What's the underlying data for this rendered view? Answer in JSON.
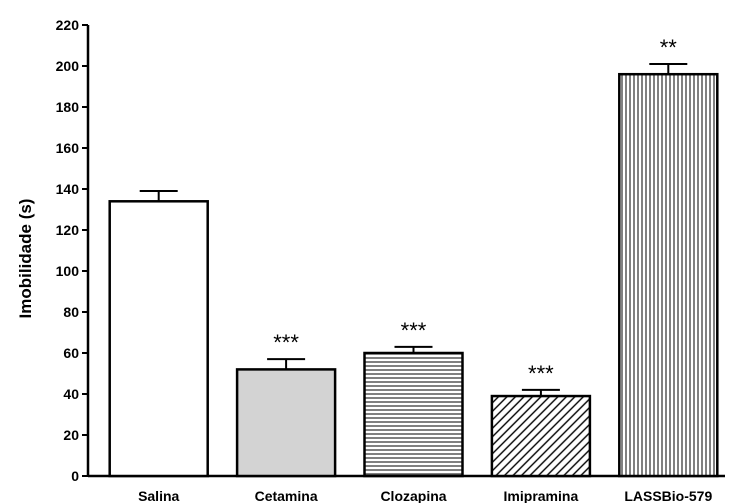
{
  "chart_data": {
    "type": "bar",
    "title": "",
    "xlabel": "",
    "ylabel": "Imobilidade (s)",
    "ylim": [
      0,
      220
    ],
    "yticks": [
      0,
      20,
      40,
      60,
      80,
      100,
      120,
      140,
      160,
      180,
      200,
      220
    ],
    "categories": [
      "Salina",
      "Cetamina",
      "Clozapina",
      "Imipramina",
      "LASSBio-579"
    ],
    "values": [
      134,
      52,
      60,
      39,
      196
    ],
    "errors": [
      5,
      5,
      3,
      3,
      5
    ],
    "significance": [
      "",
      "***",
      "***",
      "***",
      "**"
    ],
    "fills": [
      "white",
      "light-gray",
      "horizontal-lines",
      "diagonal-lines",
      "vertical-lines"
    ],
    "colors": {
      "bar_stroke": "#000000",
      "gray_fill": "#d3d3d3"
    },
    "grid": false,
    "legend": "none"
  }
}
